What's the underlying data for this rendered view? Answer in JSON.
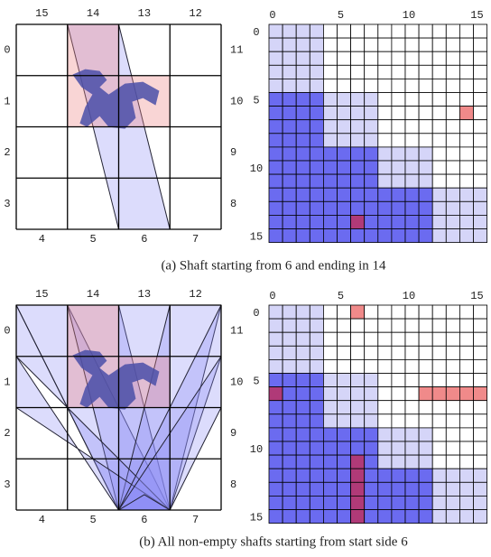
{
  "panel_a": {
    "grid": {
      "top_labels": [
        "15",
        "14",
        "13",
        "12"
      ],
      "left_labels": [
        "0",
        "1",
        "2",
        "3"
      ],
      "right_labels": [
        "11",
        "10",
        "9",
        "8"
      ],
      "bottom_labels": [
        "4",
        "5",
        "6",
        "7"
      ]
    },
    "matrix": {
      "column_labels": [
        "0",
        "5",
        "10",
        "15"
      ],
      "row_labels": [
        "0",
        "5",
        "10",
        "15"
      ]
    },
    "caption": "(a)  Shaft starting from 6 and ending in 14"
  },
  "panel_b": {
    "grid": {
      "top_labels": [
        "15",
        "14",
        "13",
        "12"
      ],
      "left_labels": [
        "0",
        "1",
        "2",
        "3"
      ],
      "right_labels": [
        "11",
        "10",
        "9",
        "8"
      ],
      "bottom_labels": [
        "4",
        "5",
        "6",
        "7"
      ]
    },
    "matrix": {
      "column_labels": [
        "0",
        "5",
        "10",
        "15"
      ],
      "row_labels": [
        "0",
        "5",
        "10",
        "15"
      ]
    },
    "caption": "(b)  All non-empty shafts starting from start side 6"
  }
}
